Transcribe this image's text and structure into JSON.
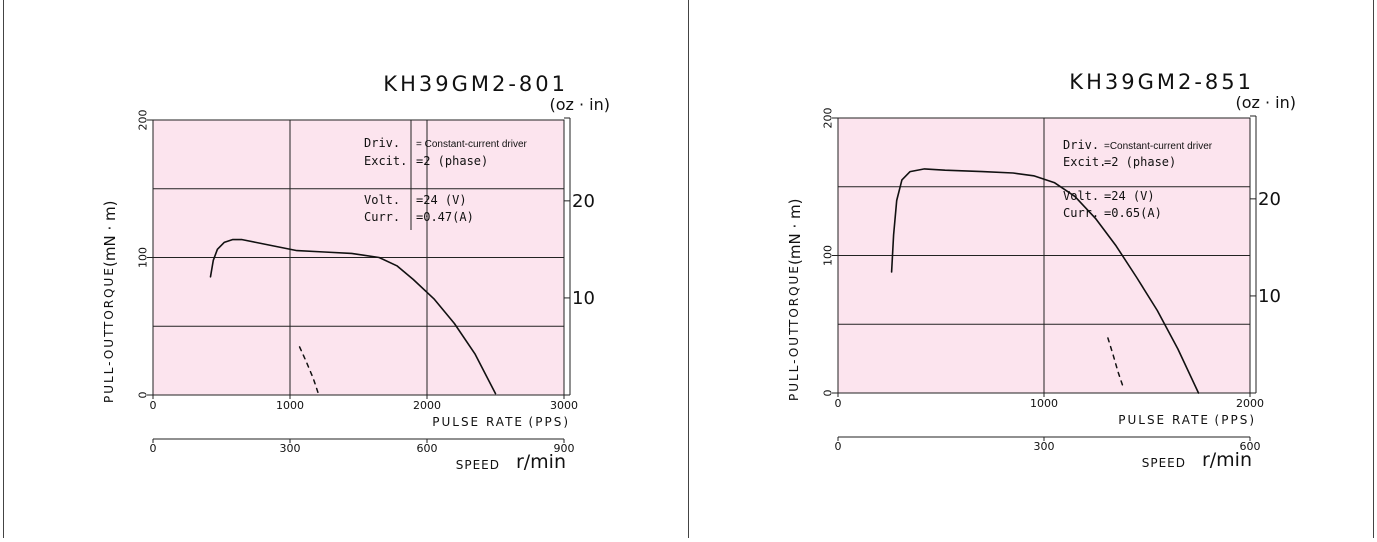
{
  "chart_data": [
    {
      "type": "line",
      "title": "KH39GM2-801",
      "right_unit": "(oz · in)",
      "ylabel_a": "PULL-OUT",
      "ylabel_b": "TORQUE",
      "ylabel_c": "(mN · m)",
      "xlabel": "PULSE RATE",
      "xunit": "(PPS)",
      "speed_label": "SPEED",
      "speed_unit": "r/min",
      "xlim": [
        0,
        3000
      ],
      "ylim": [
        0,
        200
      ],
      "x_ticks": [
        "0",
        "1000",
        "2000",
        "3000"
      ],
      "y_ticks": [
        "0",
        "100",
        "200"
      ],
      "right_ticks": [
        {
          "label": "10",
          "value": 70.6
        },
        {
          "label": "20",
          "value": 141.2
        }
      ],
      "speed_ticks": [
        {
          "label": "0",
          "value": 0
        },
        {
          "label": "300",
          "value": 1000
        },
        {
          "label": "600",
          "value": 2000
        },
        {
          "label": "900",
          "value": 3000
        }
      ],
      "grid": true,
      "info": {
        "driv_label": "Driv.",
        "driv_value": "= Constant-current driver",
        "excit_label": "Excit.",
        "excit_value": "=2  (phase)",
        "volt_label": "Volt.",
        "volt_value": "=24 (V)",
        "curr_label": "Curr.",
        "curr_value": "=0.47(A)"
      },
      "series": [
        {
          "style": "solid",
          "x": [
            420,
            440,
            470,
            520,
            580,
            650,
            750,
            900,
            1050,
            1250,
            1450,
            1650,
            1780,
            1900,
            2050,
            2200,
            2350,
            2500
          ],
          "y": [
            86,
            98,
            106,
            111,
            113,
            113,
            111,
            108,
            105,
            104,
            103,
            100,
            94,
            84,
            70,
            52,
            30,
            1
          ]
        },
        {
          "style": "dashed",
          "x": [
            1070,
            1120,
            1170,
            1210
          ],
          "y": [
            35,
            24,
            12,
            0
          ]
        }
      ]
    },
    {
      "type": "line",
      "title": "KH39GM2-851",
      "right_unit": "(oz · in)",
      "ylabel_a": "PULL-OUT",
      "ylabel_b": "TORQUE",
      "ylabel_c": "(mN · m)",
      "xlabel": "PULSE RATE",
      "xunit": "(PPS)",
      "speed_label": "SPEED",
      "speed_unit": "r/min",
      "xlim": [
        0,
        2000
      ],
      "ylim": [
        0,
        200
      ],
      "x_ticks": [
        "0",
        "1000",
        "2000"
      ],
      "y_ticks": [
        "0",
        "100",
        "200"
      ],
      "right_ticks": [
        {
          "label": "10",
          "value": 70.6
        },
        {
          "label": "20",
          "value": 141.2
        }
      ],
      "speed_ticks": [
        {
          "label": "0",
          "value": 0
        },
        {
          "label": "300",
          "value": 1000
        },
        {
          "label": "600",
          "value": 2000
        }
      ],
      "grid": true,
      "info": {
        "driv_label": "Driv.",
        "driv_value": "=Constant-current driver",
        "excit_label": "Excit.",
        "excit_value": "=2  (phase)",
        "volt_label": "Volt.",
        "volt_value": "=24 (V)",
        "curr_label": "Curr.",
        "curr_value": "=0.65(A)"
      },
      "series": [
        {
          "style": "solid",
          "x": [
            260,
            270,
            285,
            310,
            350,
            420,
            520,
            700,
            850,
            950,
            1050,
            1150,
            1250,
            1350,
            1450,
            1550,
            1650,
            1750
          ],
          "y": [
            88,
            115,
            140,
            155,
            161,
            163,
            162,
            161,
            160,
            158,
            153,
            143,
            127,
            107,
            84,
            60,
            32,
            0
          ]
        },
        {
          "style": "dashed",
          "x": [
            1310,
            1335,
            1360,
            1385
          ],
          "y": [
            40,
            28,
            15,
            4
          ]
        }
      ]
    }
  ]
}
